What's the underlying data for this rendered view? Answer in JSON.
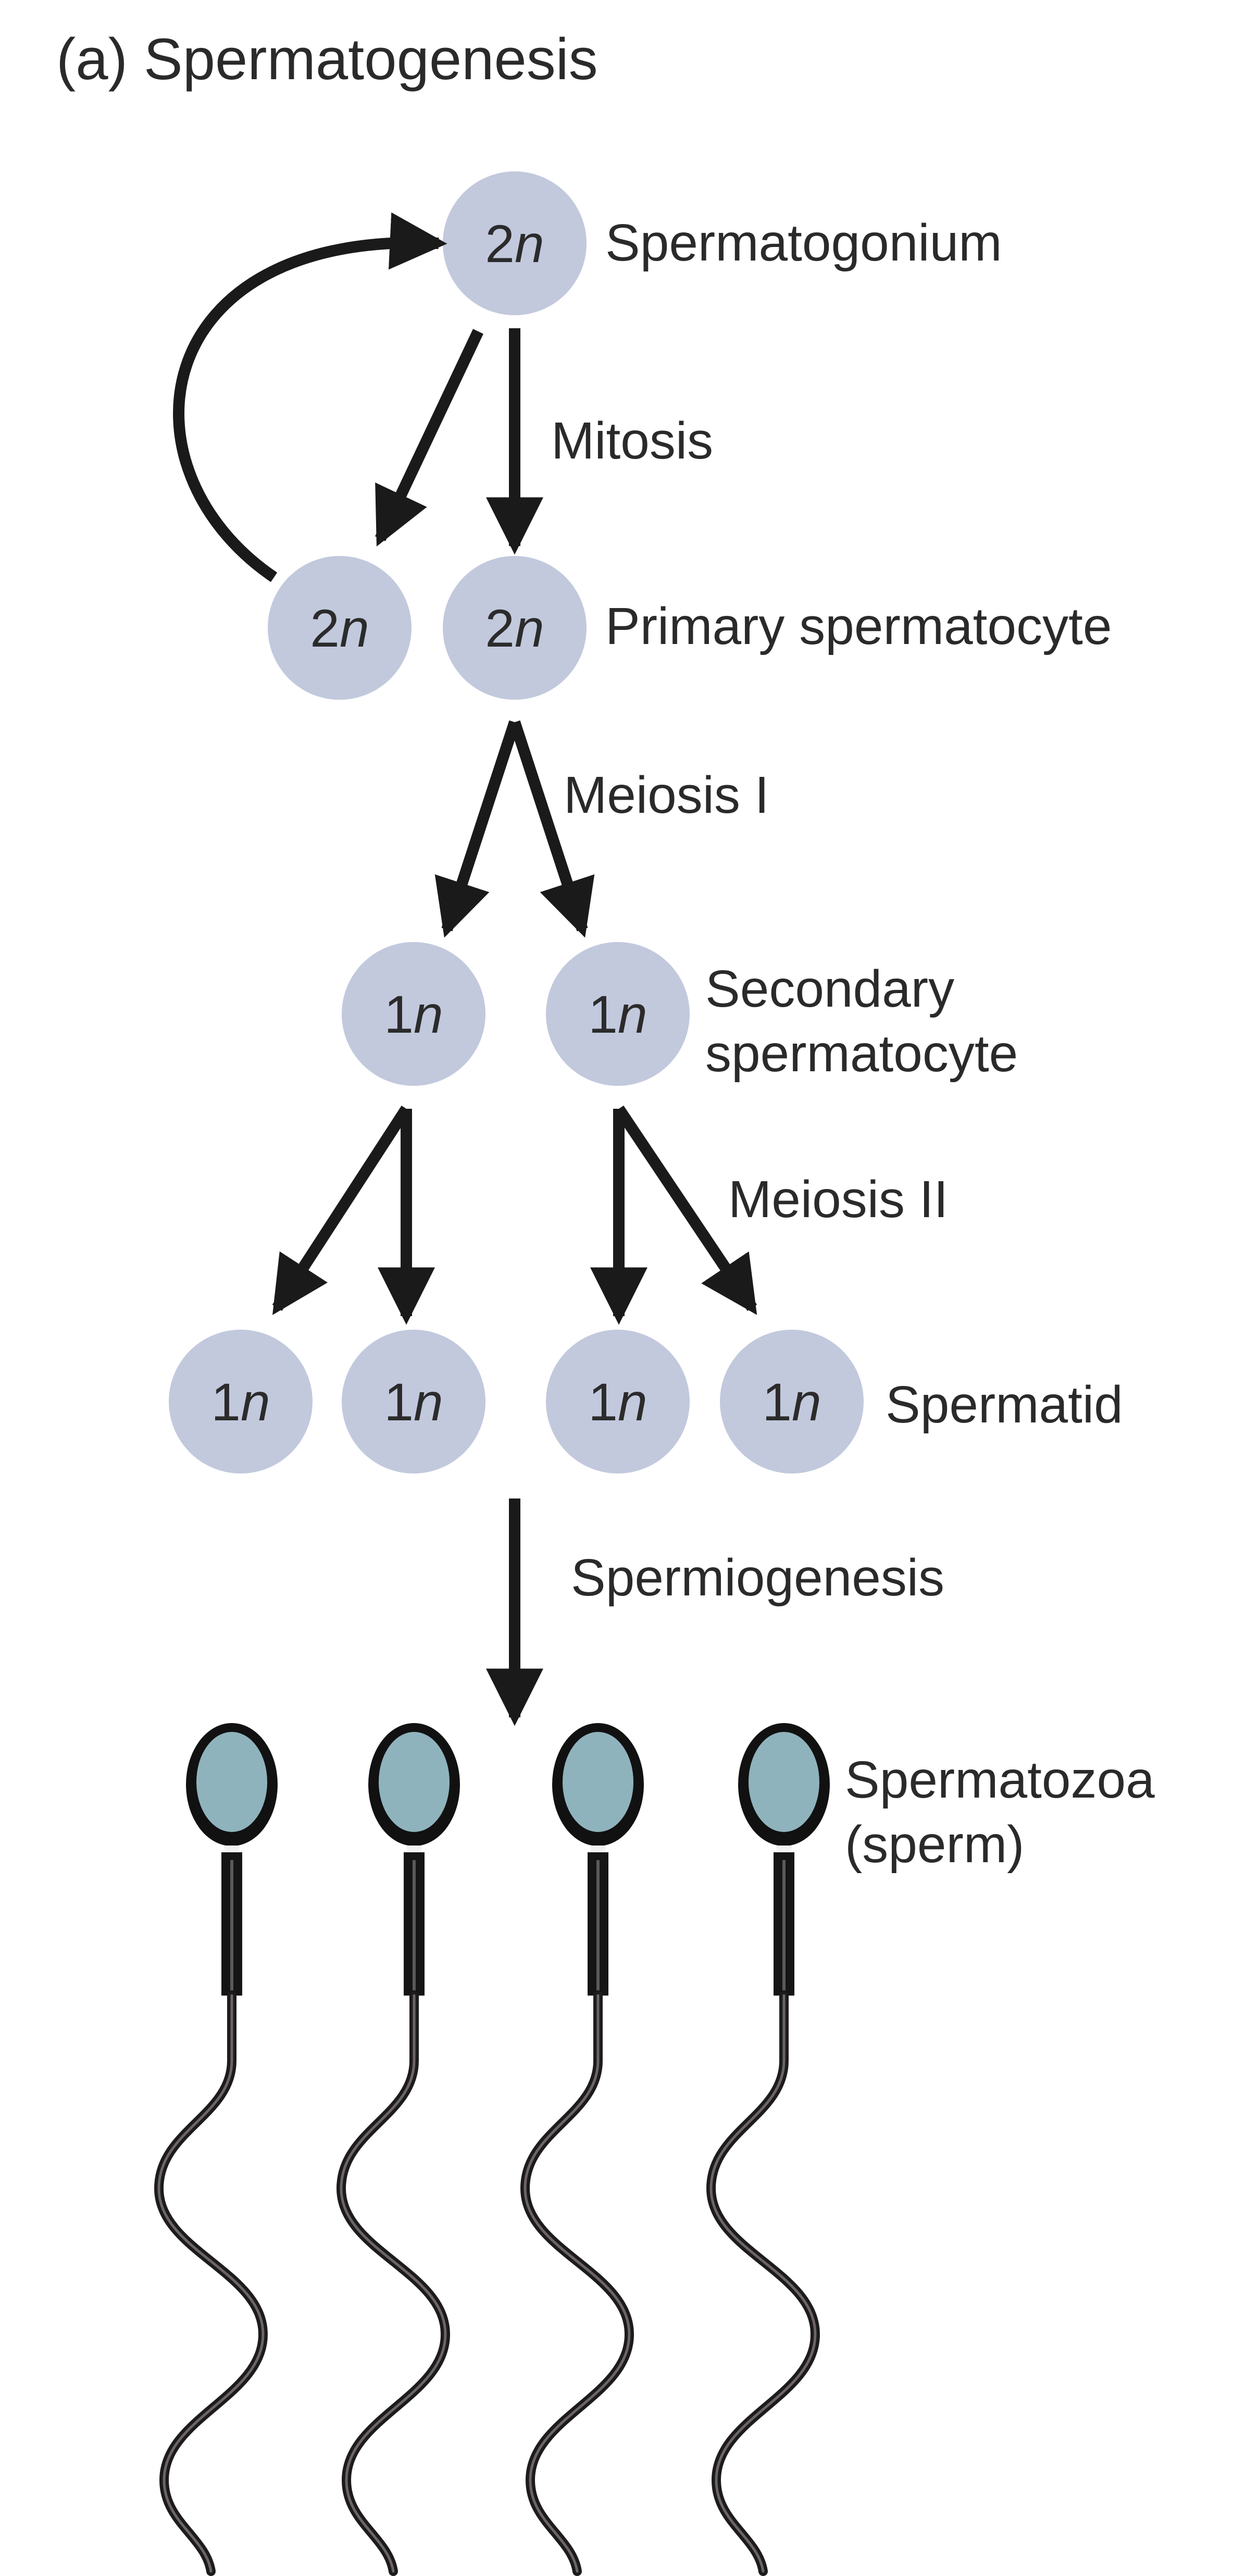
{
  "title": "(a) Spermatogenesis",
  "labels": {
    "spermatogonium": "Spermatogonium",
    "mitosis": "Mitosis",
    "primary_spermatocyte": "Primary spermatocyte",
    "meiosis_1": "Meiosis I",
    "secondary_spermatocyte_line1": "Secondary",
    "secondary_spermatocyte_line2": "spermatocyte",
    "meiosis_2": "Meiosis II",
    "spermatid": "Spermatid",
    "spermiogenesis": "Spermiogenesis",
    "spermatozoa_line1": "Spermatozoa",
    "spermatozoa_line2": "(sperm)"
  },
  "cells": {
    "spermatogonium": {
      "num": "2",
      "sym": "n"
    },
    "primary_renewed": {
      "num": "2",
      "sym": "n"
    },
    "primary": {
      "num": "2",
      "sym": "n"
    },
    "secondary_a": {
      "num": "1",
      "sym": "n"
    },
    "secondary_b": {
      "num": "1",
      "sym": "n"
    },
    "spermatid_1": {
      "num": "1",
      "sym": "n"
    },
    "spermatid_2": {
      "num": "1",
      "sym": "n"
    },
    "spermatid_3": {
      "num": "1",
      "sym": "n"
    },
    "spermatid_4": {
      "num": "1",
      "sym": "n"
    }
  },
  "colors": {
    "cell_fill": "#c2c9dd",
    "arrow": "#1a1a1a",
    "sperm_head": "#8fb3bd",
    "sperm_outline": "#111111"
  }
}
